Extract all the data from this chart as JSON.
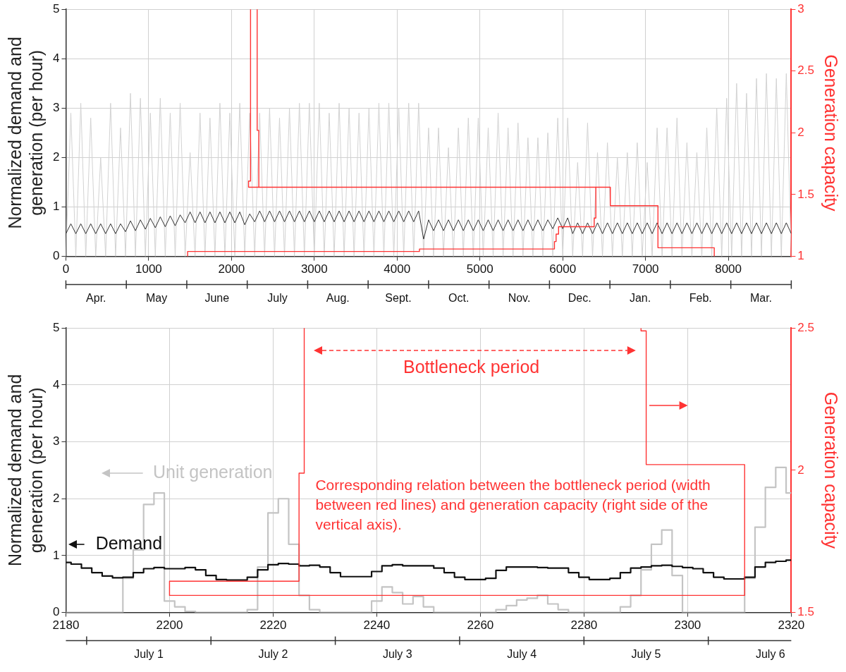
{
  "chart_data": [
    {
      "type": "line",
      "xlim": [
        0,
        8760
      ],
      "xticks": [
        0,
        1000,
        2000,
        3000,
        4000,
        5000,
        6000,
        7000,
        8000
      ],
      "ylim": [
        0,
        5
      ],
      "yticks": [
        0,
        1,
        2,
        3,
        4,
        5
      ],
      "y2lim": [
        1,
        3
      ],
      "y2ticks": [
        1,
        1.5,
        2,
        2.5,
        3
      ],
      "ylabel": "Normalized demand and generation (per hour)",
      "y2label": "Generation capacity",
      "grid": true,
      "annotations": [
        "Apr.",
        "May",
        "June",
        "July",
        "Aug.",
        "Sept.",
        "Oct.",
        "Nov.",
        "Dec.",
        "Jan.",
        "Feb.",
        "Mar."
      ],
      "x": [
        0,
        60,
        120,
        180,
        240,
        300,
        360,
        420,
        480,
        540,
        600,
        660,
        720,
        780,
        840,
        900,
        960,
        1020,
        1080,
        1140,
        1200,
        1260,
        1320,
        1380,
        1440,
        1500,
        1560,
        1620,
        1680,
        1740,
        1800,
        1860,
        1920,
        1980,
        2040,
        2100,
        2160,
        2220,
        2280,
        2340,
        2400,
        2460,
        2520,
        2580,
        2640,
        2700,
        2760,
        2820,
        2880,
        2940,
        3000,
        3060,
        3120,
        3180,
        3240,
        3300,
        3360,
        3420,
        3480,
        3540,
        3600,
        3660,
        3720,
        3780,
        3840,
        3900,
        3960,
        4020,
        4080,
        4140,
        4200,
        4260,
        4320,
        4380,
        4440,
        4500,
        4560,
        4620,
        4680,
        4740,
        4800,
        4860,
        4920,
        4980,
        5040,
        5100,
        5160,
        5220,
        5280,
        5340,
        5400,
        5460,
        5520,
        5580,
        5640,
        5700,
        5760,
        5820,
        5880,
        5940,
        6000,
        6060,
        6120,
        6180,
        6240,
        6300,
        6360,
        6420,
        6480,
        6540,
        6600,
        6660,
        6720,
        6780,
        6840,
        6900,
        6960,
        7020,
        7080,
        7140,
        7200,
        7260,
        7320,
        7380,
        7440,
        7500,
        7560,
        7620,
        7680,
        7740,
        7800,
        7860,
        7920,
        7980,
        8040,
        8100,
        8160,
        8220,
        8280,
        8340,
        8400,
        8460,
        8520,
        8580,
        8640,
        8700,
        8760
      ],
      "series": [
        {
          "color": "#d2d2d2",
          "values": [
            0,
            2.9,
            0,
            3.1,
            0,
            2.8,
            0,
            2.0,
            0,
            3.1,
            0,
            2.6,
            0,
            3.3,
            0,
            3.2,
            0,
            2.9,
            0,
            3.2,
            0,
            2.9,
            0,
            3.1,
            0,
            2.1,
            0,
            2.9,
            0,
            2.8,
            0,
            3.1,
            0,
            2.9,
            0,
            3.1,
            0,
            2.9,
            0,
            2.9,
            0,
            3.0,
            0,
            2.8,
            0,
            3.0,
            0,
            3.1,
            0,
            3.1,
            0,
            3.1,
            0,
            2.9,
            0,
            3.1,
            0,
            3.0,
            0,
            2.9,
            0,
            3.0,
            0,
            3.1,
            0,
            3.1,
            0,
            3.0,
            0,
            3.1,
            0,
            3.1,
            0,
            2.6,
            0,
            2.6,
            0,
            2.2,
            0,
            2.6,
            0,
            2.8,
            0,
            2.8,
            0,
            2.6,
            0,
            2.9,
            0,
            2.6,
            0,
            2.7,
            0,
            2.4,
            0,
            2.4,
            0,
            2.5,
            0,
            2.8,
            0,
            2.8,
            0,
            1.9,
            0,
            2.7,
            0,
            2.1,
            0,
            2.3,
            0,
            2.0,
            0,
            2.1,
            0,
            2.3,
            0,
            1.9,
            0,
            2.6,
            0,
            2.6,
            0,
            2.8,
            0,
            2.3,
            0,
            2.1,
            0,
            2.6,
            0,
            3.0,
            0,
            3.2,
            0,
            3.5,
            0,
            3.3,
            0,
            3.6,
            0,
            3.7,
            0,
            3.6,
            0,
            3.7,
            0
          ]
        },
        {
          "color": "#333333",
          "values": [
            0.46,
            0.66,
            0.46,
            0.66,
            0.46,
            0.66,
            0.46,
            0.66,
            0.46,
            0.66,
            0.46,
            0.66,
            0.5,
            0.72,
            0.52,
            0.74,
            0.55,
            0.77,
            0.58,
            0.8,
            0.6,
            0.82,
            0.62,
            0.84,
            0.68,
            0.9,
            0.68,
            0.9,
            0.68,
            0.9,
            0.68,
            0.9,
            0.68,
            0.9,
            0.68,
            0.9,
            0.64,
            0.86,
            0.7,
            0.92,
            0.7,
            0.92,
            0.7,
            0.92,
            0.7,
            0.92,
            0.7,
            0.92,
            0.7,
            0.92,
            0.7,
            0.92,
            0.7,
            0.92,
            0.7,
            0.92,
            0.7,
            0.92,
            0.7,
            0.92,
            0.7,
            0.92,
            0.7,
            0.92,
            0.7,
            0.92,
            0.7,
            0.92,
            0.7,
            0.92,
            0.7,
            0.92,
            0.35,
            0.74,
            0.52,
            0.74,
            0.52,
            0.74,
            0.52,
            0.74,
            0.52,
            0.74,
            0.52,
            0.74,
            0.52,
            0.74,
            0.52,
            0.74,
            0.52,
            0.74,
            0.52,
            0.74,
            0.52,
            0.74,
            0.52,
            0.74,
            0.52,
            0.74,
            0.56,
            0.78,
            0.56,
            0.78,
            0.46,
            0.68,
            0.46,
            0.68,
            0.46,
            0.68,
            0.46,
            0.68,
            0.46,
            0.68,
            0.46,
            0.68,
            0.46,
            0.68,
            0.46,
            0.68,
            0.46,
            0.68,
            0.46,
            0.68,
            0.46,
            0.68,
            0.46,
            0.68,
            0.46,
            0.68,
            0.46,
            0.68,
            0.46,
            0.68,
            0.46,
            0.68,
            0.46,
            0.68,
            0.46,
            0.68,
            0.46,
            0.68,
            0.46,
            0.68,
            0.46,
            0.68,
            0.46,
            0.68,
            0.46
          ]
        },
        {
          "color": "#ff3333",
          "axis": "y2",
          "x": [
            2230,
            2230,
            2206,
            2206,
            6575,
            6575,
            7150,
            7150,
            7830,
            7830
          ],
          "values": [
            3,
            1.61,
            1.61,
            1.56,
            1.56,
            1.41,
            1.41,
            1.07,
            1.07,
            1
          ]
        },
        {
          "color": "#ff3333",
          "axis": "y2",
          "x": [
            2310,
            2310,
            2330,
            2330
          ],
          "values": [
            3,
            2.02,
            2.02,
            1.56
          ]
        },
        {
          "color": "#ff3333",
          "axis": "y2",
          "x": [
            6400,
            6400,
            6380,
            6380,
            5950,
            5950,
            5920,
            5920,
            5900,
            5900,
            4270,
            4270,
            1470,
            1470
          ],
          "values": [
            1.56,
            1.31,
            1.31,
            1.24,
            1.24,
            1.18,
            1.18,
            1.12,
            1.12,
            1.06,
            1.06,
            1.04,
            1.04,
            1
          ]
        }
      ]
    },
    {
      "type": "step",
      "xlim": [
        2180,
        2320
      ],
      "xticks": [
        2180,
        2200,
        2220,
        2240,
        2260,
        2280,
        2300,
        2320
      ],
      "ylim": [
        0,
        5
      ],
      "yticks": [
        0,
        1,
        2,
        3,
        4,
        5
      ],
      "y2lim": [
        1.5,
        2.5
      ],
      "y2ticks": [
        1.5,
        2,
        2.5
      ],
      "ylabel": "Normalized demand and generation (per hour)",
      "y2label": "Generation capacity",
      "grid": true,
      "annotations": [
        "Bottleneck period",
        "Corresponding relation between the bottleneck period (width between red lines) and generation capacity (right side of the vertical axis).",
        "July 1",
        "July 2",
        "July 3",
        "July 4",
        "July 5",
        "July 6"
      ],
      "legend": "left",
      "x": [
        2180,
        2182,
        2184,
        2186,
        2188,
        2190,
        2192,
        2194,
        2196,
        2198,
        2200,
        2202,
        2204,
        2206,
        2208,
        2210,
        2212,
        2214,
        2216,
        2218,
        2220,
        2222,
        2224,
        2226,
        2228,
        2230,
        2232,
        2234,
        2236,
        2238,
        2240,
        2242,
        2244,
        2246,
        2248,
        2250,
        2252,
        2254,
        2256,
        2258,
        2260,
        2262,
        2264,
        2266,
        2268,
        2270,
        2272,
        2274,
        2276,
        2278,
        2280,
        2282,
        2284,
        2286,
        2288,
        2290,
        2292,
        2294,
        2296,
        2298,
        2300,
        2302,
        2304,
        2306,
        2308,
        2310,
        2312,
        2314,
        2316,
        2318,
        2320
      ],
      "series": [
        {
          "name": "Unit generation",
          "color": "#c4c4c4",
          "values": [
            0,
            0,
            0,
            0,
            0,
            0,
            0.6,
            1.1,
            1.9,
            2.1,
            0.2,
            0.1,
            0.02,
            0,
            0,
            0,
            0,
            0,
            0.05,
            0.8,
            1.75,
            2.0,
            1.2,
            0.3,
            0.05,
            0,
            0,
            0,
            0,
            0,
            0.2,
            0.45,
            0.35,
            0.15,
            0.28,
            0.1,
            0,
            0,
            0,
            0,
            0,
            0,
            0.05,
            0.12,
            0.22,
            0.25,
            0.3,
            0.15,
            0.05,
            0,
            0,
            0,
            0,
            0,
            0.1,
            0.3,
            0.75,
            1.2,
            1.45,
            0.65,
            0,
            0,
            0,
            0,
            0,
            0,
            0.6,
            1.5,
            2.2,
            2.55,
            2.1
          ]
        },
        {
          "name": "Demand",
          "color": "#111111",
          "values": [
            0.88,
            0.85,
            0.78,
            0.7,
            0.64,
            0.61,
            0.62,
            0.7,
            0.77,
            0.79,
            0.77,
            0.77,
            0.79,
            0.75,
            0.65,
            0.58,
            0.57,
            0.57,
            0.62,
            0.75,
            0.84,
            0.86,
            0.85,
            0.82,
            0.83,
            0.8,
            0.7,
            0.63,
            0.63,
            0.63,
            0.72,
            0.82,
            0.84,
            0.82,
            0.82,
            0.82,
            0.78,
            0.7,
            0.62,
            0.58,
            0.58,
            0.6,
            0.74,
            0.8,
            0.8,
            0.8,
            0.79,
            0.78,
            0.78,
            0.7,
            0.62,
            0.58,
            0.58,
            0.6,
            0.7,
            0.78,
            0.8,
            0.82,
            0.83,
            0.81,
            0.79,
            0.77,
            0.7,
            0.62,
            0.59,
            0.59,
            0.62,
            0.8,
            0.88,
            0.9,
            0.92
          ]
        },
        {
          "type": "line",
          "color": "#ff3333",
          "axis": "y2",
          "x": [
            2226,
            2226,
            2225,
            2225,
            2200,
            2200,
            2311,
            2311,
            2292,
            2292,
            2291,
            2291
          ],
          "values": [
            2.5,
            1.99,
            1.99,
            1.61,
            1.61,
            1.56,
            1.56,
            2.02,
            2.02,
            2.49,
            2.49,
            2.5
          ]
        }
      ]
    }
  ]
}
